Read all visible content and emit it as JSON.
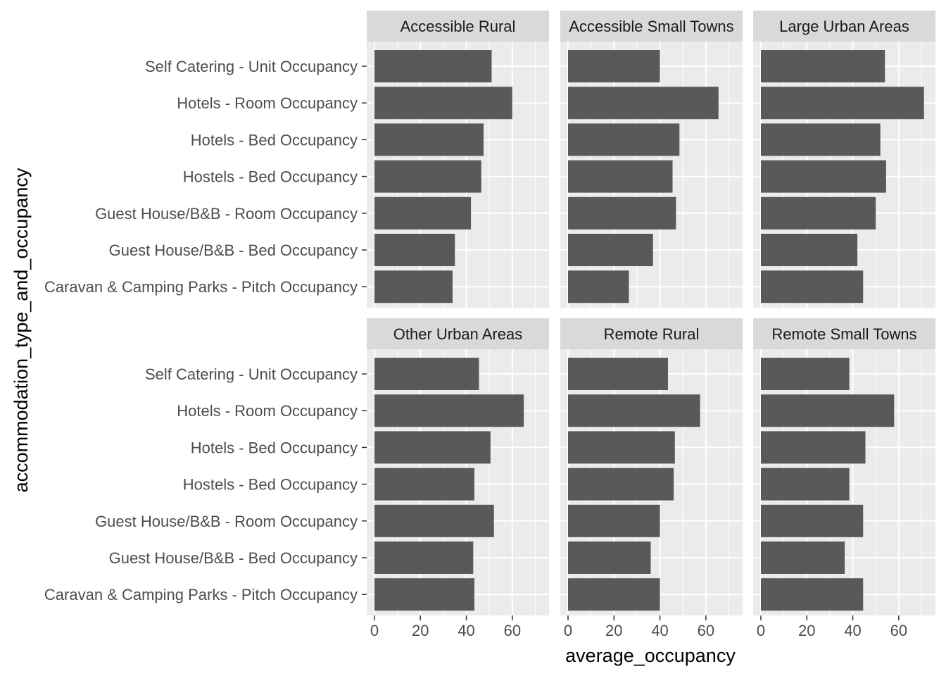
{
  "chart_data": {
    "type": "bar",
    "orientation": "horizontal",
    "xlabel": "average_occupancy",
    "ylabel": "accommodation_type_and_occupancy",
    "xlim": [
      0,
      72
    ],
    "x_ticks": [
      0,
      20,
      40,
      60
    ],
    "categories": [
      "Self Catering - Unit Occupancy",
      "Hotels - Room Occupancy",
      "Hotels - Bed Occupancy",
      "Hostels - Bed Occupancy",
      "Guest House/B&B - Room Occupancy",
      "Guest House/B&B - Bed Occupancy",
      "Caravan & Camping Parks - Pitch Occupancy"
    ],
    "facets": [
      {
        "name": "Accessible Rural",
        "values": [
          51,
          60,
          47.5,
          46.5,
          42,
          35,
          34
        ]
      },
      {
        "name": "Accessible Small Towns",
        "values": [
          40,
          65.5,
          48.5,
          45.5,
          47,
          37,
          26.5
        ]
      },
      {
        "name": "Large Urban Areas",
        "values": [
          54,
          71,
          52,
          54.5,
          50,
          42,
          44.5
        ]
      },
      {
        "name": "Other Urban Areas",
        "values": [
          45.5,
          65,
          50.5,
          43.5,
          52,
          43,
          43.5
        ]
      },
      {
        "name": "Remote Rural",
        "values": [
          43.5,
          57.5,
          46.5,
          46,
          40,
          36,
          40
        ]
      },
      {
        "name": "Remote Small Towns",
        "values": [
          38.5,
          58,
          45.5,
          38.5,
          44.5,
          36.5,
          44.5
        ]
      }
    ],
    "grid": true,
    "legend": "none"
  }
}
